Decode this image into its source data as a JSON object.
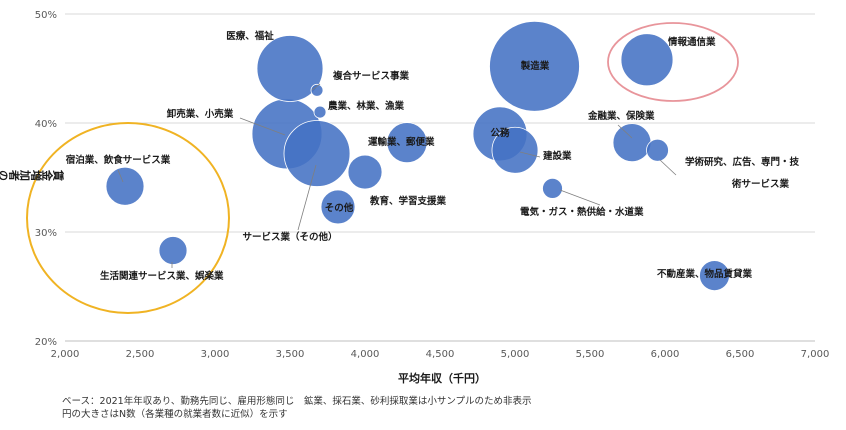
{
  "chart_data": {
    "type": "bubble",
    "title": "",
    "xlabel": "平均年収（千円）",
    "ylabel": "賃金増加者の比率",
    "xlim": [
      2000,
      7000
    ],
    "ylim": [
      20,
      50
    ],
    "x_ticks": [
      "2,000",
      "2,500",
      "3,000",
      "3,500",
      "4,000",
      "4,500",
      "5,000",
      "5,500",
      "6,000",
      "6,500",
      "7,000"
    ],
    "y_ticks": [
      "20%",
      "30%",
      "40%",
      "50%"
    ],
    "bubble_color": "#4472c4",
    "points": [
      {
        "name": "医療、福祉",
        "x": 3500,
        "y": 45.0,
        "size": 33
      },
      {
        "name": "複合サービス事業",
        "x": 3680,
        "y": 43.0,
        "size": 6
      },
      {
        "name": "農業、林業、漁業",
        "x": 3700,
        "y": 41.0,
        "size": 6
      },
      {
        "name": "卸売業、小売業",
        "x": 3480,
        "y": 39.0,
        "size": 35
      },
      {
        "name": "サービス業（その他）",
        "x": 3680,
        "y": 37.2,
        "size": 33
      },
      {
        "name": "運輸業、郵便業",
        "x": 4280,
        "y": 38.2,
        "size": 20
      },
      {
        "name": "教育、学習支援業",
        "x": 4000,
        "y": 35.5,
        "size": 17
      },
      {
        "name": "その他",
        "x": 3820,
        "y": 32.3,
        "size": 17
      },
      {
        "name": "製造業",
        "x": 5130,
        "y": 45.2,
        "size": 45
      },
      {
        "name": "公務",
        "x": 4900,
        "y": 39.0,
        "size": 27
      },
      {
        "name": "建設業",
        "x": 5000,
        "y": 37.5,
        "size": 23
      },
      {
        "name": "電気・ガス・熱供給・水道業",
        "x": 5250,
        "y": 34.0,
        "size": 10
      },
      {
        "name": "情報通信業",
        "x": 5880,
        "y": 45.8,
        "size": 26
      },
      {
        "name": "金融業、保険業",
        "x": 5780,
        "y": 38.2,
        "size": 19
      },
      {
        "name": "学術研究、広告、専門・技術サービス業",
        "x": 5950,
        "y": 37.5,
        "size": 11
      },
      {
        "name": "不動産業、物品賃貸業",
        "x": 6330,
        "y": 26.0,
        "size": 15
      },
      {
        "name": "宿泊業、飲食サービス業",
        "x": 2400,
        "y": 34.2,
        "size": 19
      },
      {
        "name": "生活関連サービス業、娯楽業",
        "x": 2720,
        "y": 28.3,
        "size": 14
      }
    ],
    "highlight_circles": [
      {
        "label": "orange-highlight",
        "color": "#f0b323"
      },
      {
        "label": "pink-highlight",
        "color": "#e8959b"
      }
    ]
  },
  "notes": {
    "line1": "ベース：2021年年収あり、勤務先同じ、雇用形態同じ　鉱業、採石業、砂利採取業は小サンプルのため非表示",
    "line2": "円の大きさはN数（各業種の就業者数に近似）を示す"
  }
}
